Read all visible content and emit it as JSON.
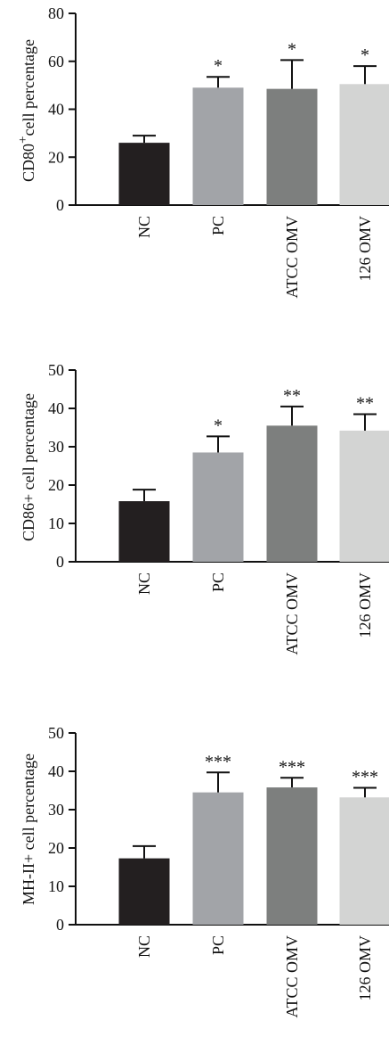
{
  "colors": {
    "NC": "#231f20",
    "PC": "#a2a4a8",
    "ATCC OMV": "#7d7f7e",
    "126 OMV": "#d3d4d3"
  },
  "chart_data": [
    {
      "type": "bar",
      "categories": [
        "NC",
        "PC",
        "ATCC OMV",
        "126 OMV"
      ],
      "values": [
        26,
        49,
        48.5,
        50.5
      ],
      "errors": [
        3,
        4.5,
        12,
        7.5
      ],
      "significance": [
        "",
        "*",
        "*",
        "*"
      ],
      "ylabel_main": "CD80",
      "ylabel_sup": "+",
      "ylabel_rest": "cell percentage",
      "ylim": [
        0,
        80
      ],
      "yticks": [
        0,
        20,
        40,
        60,
        80
      ],
      "grid": false
    },
    {
      "type": "bar",
      "categories": [
        "NC",
        "PC",
        "ATCC OMV",
        "126 OMV"
      ],
      "values": [
        15.8,
        28.5,
        35.5,
        34.2
      ],
      "errors": [
        3,
        4.2,
        5,
        4.3
      ],
      "significance": [
        "",
        "*",
        "**",
        "**"
      ],
      "ylabel_main": "CD86+ cell percentage",
      "ylabel_sup": "",
      "ylabel_rest": "",
      "ylim": [
        0,
        50
      ],
      "yticks": [
        0,
        10,
        20,
        30,
        40,
        50
      ],
      "grid": false
    },
    {
      "type": "bar",
      "categories": [
        "NC",
        "PC",
        "ATCC OMV",
        "126 OMV"
      ],
      "values": [
        17.3,
        34.5,
        35.8,
        33.2
      ],
      "errors": [
        3.2,
        5.2,
        2.5,
        2.5
      ],
      "significance": [
        "",
        "***",
        "***",
        "***"
      ],
      "ylabel_main": "MH-II+ cell percentage",
      "ylabel_sup": "",
      "ylabel_rest": "",
      "ylim": [
        0,
        50
      ],
      "yticks": [
        0,
        10,
        20,
        30,
        40,
        50
      ],
      "grid": false
    }
  ]
}
